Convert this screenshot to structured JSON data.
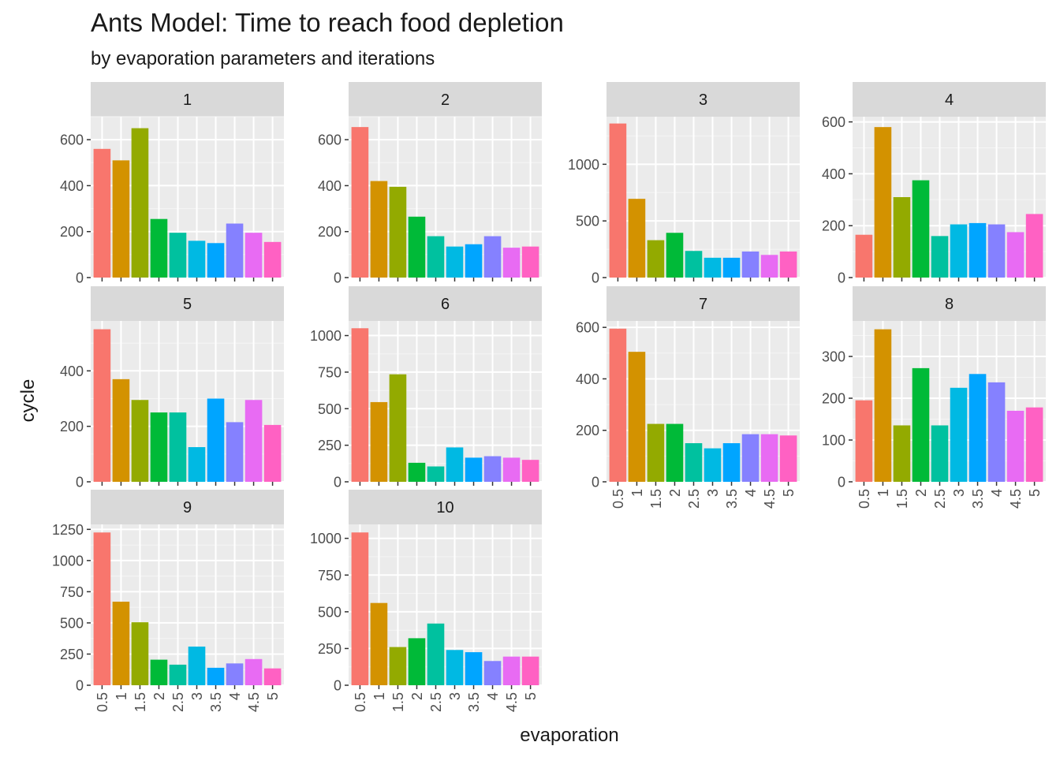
{
  "chart_data": {
    "type": "bar",
    "title": "Ants Model: Time to reach food depletion",
    "subtitle": "by evaporation parameters and iterations",
    "xlabel": "evaporation",
    "ylabel": "cycle",
    "categories": [
      "0.5",
      "1",
      "1.5",
      "2",
      "2.5",
      "3",
      "3.5",
      "4",
      "4.5",
      "5"
    ],
    "colors": [
      "#F8766D",
      "#D39200",
      "#93AA00",
      "#00BA38",
      "#00C19F",
      "#00B9E3",
      "#00A5FF",
      "#8581FF",
      "#E86BF3",
      "#FF61C3"
    ],
    "grid": true,
    "panels": [
      {
        "label": "1",
        "values": [
          560,
          510,
          650,
          255,
          195,
          160,
          150,
          235,
          195,
          155
        ],
        "ylim": [
          0,
          700
        ],
        "yticks": [
          0,
          200,
          400,
          600
        ]
      },
      {
        "label": "2",
        "values": [
          655,
          420,
          395,
          265,
          180,
          135,
          145,
          180,
          130,
          135
        ],
        "ylim": [
          0,
          700
        ],
        "yticks": [
          0,
          200,
          400,
          600
        ]
      },
      {
        "label": "3",
        "values": [
          1360,
          695,
          330,
          395,
          235,
          175,
          175,
          230,
          200,
          230
        ],
        "ylim": [
          0,
          1420
        ],
        "yticks": [
          0,
          500,
          1000
        ]
      },
      {
        "label": "4",
        "values": [
          165,
          580,
          310,
          375,
          160,
          205,
          210,
          205,
          175,
          245
        ],
        "ylim": [
          0,
          620
        ],
        "yticks": [
          0,
          200,
          400,
          600
        ]
      },
      {
        "label": "5",
        "values": [
          550,
          370,
          295,
          250,
          250,
          125,
          300,
          215,
          295,
          205
        ],
        "ylim": [
          0,
          580
        ],
        "yticks": [
          0,
          200,
          400
        ]
      },
      {
        "label": "6",
        "values": [
          1050,
          545,
          735,
          130,
          105,
          235,
          165,
          175,
          165,
          150
        ],
        "ylim": [
          0,
          1100
        ],
        "yticks": [
          0,
          250,
          500,
          750,
          1000
        ]
      },
      {
        "label": "7",
        "values": [
          595,
          505,
          225,
          225,
          150,
          130,
          150,
          185,
          185,
          180
        ],
        "ylim": [
          0,
          625
        ],
        "yticks": [
          0,
          200,
          400,
          600
        ]
      },
      {
        "label": "8",
        "values": [
          195,
          365,
          135,
          272,
          135,
          225,
          258,
          238,
          170,
          178
        ],
        "ylim": [
          0,
          385
        ],
        "yticks": [
          0,
          100,
          200,
          300
        ]
      },
      {
        "label": "9",
        "values": [
          1225,
          670,
          505,
          205,
          165,
          310,
          140,
          175,
          210,
          135
        ],
        "ylim": [
          0,
          1290
        ],
        "yticks": [
          0,
          250,
          500,
          750,
          1000,
          1250
        ]
      },
      {
        "label": "10",
        "values": [
          1040,
          560,
          260,
          320,
          420,
          240,
          225,
          165,
          195,
          195
        ],
        "ylim": [
          0,
          1095
        ],
        "yticks": [
          0,
          250,
          500,
          750,
          1000
        ]
      }
    ]
  }
}
